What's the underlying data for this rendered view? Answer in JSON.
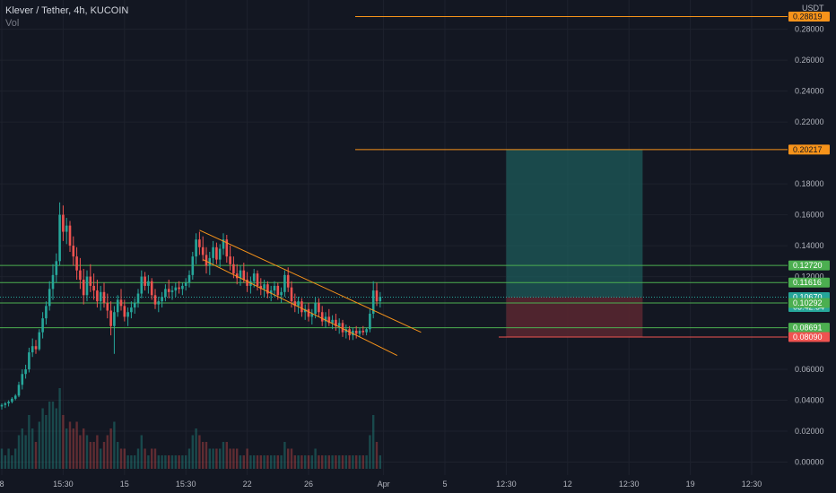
{
  "header": {
    "symbol": "Klever / Tether, 4h, KUCOIN",
    "volume_label": "Vol"
  },
  "currency": "USDT",
  "countdown": "03:42:54",
  "colors": {
    "background": "#131722",
    "up": "#26a69a",
    "down": "#ef5350",
    "orange": "#f7931a",
    "green_line": "#4caf50",
    "target_zone": "#1e5b5a",
    "stop_zone": "#5a2730",
    "current_price_tag": "#26a69a"
  },
  "chart_data": {
    "type": "candlestick",
    "y_axis": {
      "ticks": [
        "0.28000",
        "0.26000",
        "0.24000",
        "0.22000",
        "0.18000",
        "0.16000",
        "0.14000",
        "0.12000",
        "0.06000",
        "0.04000",
        "0.02000",
        "0.00000"
      ],
      "tick_values": [
        0.28,
        0.26,
        0.24,
        0.22,
        0.18,
        0.16,
        0.14,
        0.12,
        0.06,
        0.04,
        0.02,
        0.0
      ],
      "ylim": [
        -0.002,
        0.296
      ]
    },
    "x_axis": {
      "ticks": [
        "8",
        "15:30",
        "15",
        "15:30",
        "22",
        "26",
        "Apr",
        "5",
        "12:30",
        "12",
        "12:30",
        "19",
        "12:30"
      ],
      "tick_index": [
        0,
        18,
        36,
        54,
        72,
        90,
        112,
        130,
        148,
        166,
        184,
        202,
        220
      ],
      "count": 230
    },
    "price_levels": [
      {
        "label": "0.28819",
        "value": 0.28819,
        "kind": "orange"
      },
      {
        "label": "0.20217",
        "value": 0.20217,
        "kind": "orange"
      },
      {
        "label": "0.12720",
        "value": 0.1272,
        "kind": "green"
      },
      {
        "label": "0.11616",
        "value": 0.11616,
        "kind": "green"
      },
      {
        "label": "0.10670",
        "value": 0.1067,
        "kind": "current"
      },
      {
        "label": "0.10292",
        "value": 0.10292,
        "kind": "green"
      },
      {
        "label": "0.08691",
        "value": 0.08691,
        "kind": "green"
      },
      {
        "label": "0.08090",
        "value": 0.0809,
        "kind": "red"
      }
    ],
    "position": {
      "entry": 0.1067,
      "target": 0.20217,
      "stop": 0.0809,
      "start_index": 148,
      "end_index": 188
    },
    "channel": {
      "upper": [
        [
          58,
          0.15
        ],
        [
          123,
          0.084
        ]
      ],
      "lower": [
        [
          59,
          0.131
        ],
        [
          116,
          0.069
        ]
      ]
    },
    "candles": [
      [
        0.036,
        0.038,
        0.034,
        0.037,
        0.03
      ],
      [
        0.037,
        0.039,
        0.035,
        0.038,
        0.02
      ],
      [
        0.038,
        0.04,
        0.036,
        0.039,
        0.03
      ],
      [
        0.039,
        0.042,
        0.038,
        0.041,
        0.02
      ],
      [
        0.041,
        0.044,
        0.04,
        0.043,
        0.03
      ],
      [
        0.043,
        0.052,
        0.042,
        0.05,
        0.05
      ],
      [
        0.05,
        0.06,
        0.047,
        0.057,
        0.06
      ],
      [
        0.057,
        0.063,
        0.054,
        0.06,
        0.05
      ],
      [
        0.06,
        0.074,
        0.058,
        0.071,
        0.08
      ],
      [
        0.071,
        0.08,
        0.068,
        0.075,
        0.06
      ],
      [
        0.075,
        0.079,
        0.07,
        0.073,
        0.04
      ],
      [
        0.073,
        0.086,
        0.072,
        0.084,
        0.07
      ],
      [
        0.084,
        0.097,
        0.08,
        0.093,
        0.09
      ],
      [
        0.093,
        0.104,
        0.089,
        0.101,
        0.08
      ],
      [
        0.101,
        0.117,
        0.098,
        0.112,
        0.1
      ],
      [
        0.112,
        0.128,
        0.105,
        0.121,
        0.1
      ],
      [
        0.121,
        0.135,
        0.116,
        0.13,
        0.09
      ],
      [
        0.13,
        0.168,
        0.127,
        0.16,
        0.12
      ],
      [
        0.16,
        0.166,
        0.143,
        0.149,
        0.08
      ],
      [
        0.149,
        0.158,
        0.141,
        0.153,
        0.06
      ],
      [
        0.153,
        0.156,
        0.136,
        0.14,
        0.07
      ],
      [
        0.14,
        0.146,
        0.127,
        0.133,
        0.06
      ],
      [
        0.133,
        0.139,
        0.118,
        0.124,
        0.07
      ],
      [
        0.124,
        0.132,
        0.112,
        0.118,
        0.05
      ],
      [
        0.118,
        0.125,
        0.102,
        0.108,
        0.06
      ],
      [
        0.108,
        0.124,
        0.104,
        0.12,
        0.05
      ],
      [
        0.12,
        0.128,
        0.11,
        0.114,
        0.04
      ],
      [
        0.114,
        0.122,
        0.105,
        0.111,
        0.04
      ],
      [
        0.111,
        0.118,
        0.1,
        0.104,
        0.05
      ],
      [
        0.104,
        0.114,
        0.098,
        0.11,
        0.03
      ],
      [
        0.11,
        0.116,
        0.1,
        0.103,
        0.04
      ],
      [
        0.103,
        0.109,
        0.093,
        0.098,
        0.05
      ],
      [
        0.098,
        0.104,
        0.082,
        0.088,
        0.06
      ],
      [
        0.088,
        0.101,
        0.07,
        0.097,
        0.07
      ],
      [
        0.097,
        0.108,
        0.094,
        0.105,
        0.04
      ],
      [
        0.105,
        0.112,
        0.098,
        0.101,
        0.03
      ],
      [
        0.101,
        0.105,
        0.091,
        0.094,
        0.03
      ],
      [
        0.094,
        0.1,
        0.088,
        0.097,
        0.02
      ],
      [
        0.097,
        0.104,
        0.093,
        0.1,
        0.02
      ],
      [
        0.1,
        0.106,
        0.096,
        0.103,
        0.02
      ],
      [
        0.103,
        0.112,
        0.1,
        0.109,
        0.03
      ],
      [
        0.109,
        0.124,
        0.106,
        0.12,
        0.05
      ],
      [
        0.12,
        0.123,
        0.111,
        0.114,
        0.03
      ],
      [
        0.114,
        0.121,
        0.109,
        0.117,
        0.02
      ],
      [
        0.117,
        0.119,
        0.105,
        0.108,
        0.03
      ],
      [
        0.108,
        0.112,
        0.099,
        0.102,
        0.03
      ],
      [
        0.102,
        0.107,
        0.097,
        0.104,
        0.02
      ],
      [
        0.104,
        0.11,
        0.1,
        0.107,
        0.02
      ],
      [
        0.107,
        0.115,
        0.104,
        0.112,
        0.02
      ],
      [
        0.112,
        0.118,
        0.106,
        0.11,
        0.02
      ],
      [
        0.11,
        0.114,
        0.105,
        0.111,
        0.02
      ],
      [
        0.111,
        0.116,
        0.107,
        0.113,
        0.02
      ],
      [
        0.113,
        0.117,
        0.109,
        0.112,
        0.02
      ],
      [
        0.112,
        0.116,
        0.108,
        0.114,
        0.02
      ],
      [
        0.114,
        0.119,
        0.111,
        0.116,
        0.02
      ],
      [
        0.116,
        0.124,
        0.113,
        0.121,
        0.03
      ],
      [
        0.121,
        0.136,
        0.118,
        0.133,
        0.05
      ],
      [
        0.133,
        0.148,
        0.128,
        0.144,
        0.06
      ],
      [
        0.144,
        0.149,
        0.134,
        0.139,
        0.05
      ],
      [
        0.139,
        0.146,
        0.13,
        0.134,
        0.04
      ],
      [
        0.134,
        0.139,
        0.122,
        0.127,
        0.04
      ],
      [
        0.127,
        0.136,
        0.121,
        0.132,
        0.03
      ],
      [
        0.132,
        0.143,
        0.128,
        0.139,
        0.03
      ],
      [
        0.139,
        0.142,
        0.128,
        0.131,
        0.03
      ],
      [
        0.131,
        0.141,
        0.126,
        0.138,
        0.03
      ],
      [
        0.138,
        0.148,
        0.134,
        0.144,
        0.04
      ],
      [
        0.144,
        0.147,
        0.129,
        0.133,
        0.04
      ],
      [
        0.133,
        0.14,
        0.124,
        0.128,
        0.03
      ],
      [
        0.128,
        0.133,
        0.119,
        0.122,
        0.03
      ],
      [
        0.122,
        0.128,
        0.115,
        0.119,
        0.03
      ],
      [
        0.119,
        0.127,
        0.114,
        0.124,
        0.02
      ],
      [
        0.124,
        0.129,
        0.116,
        0.118,
        0.02
      ],
      [
        0.118,
        0.123,
        0.11,
        0.114,
        0.03
      ],
      [
        0.114,
        0.12,
        0.109,
        0.117,
        0.02
      ],
      [
        0.117,
        0.125,
        0.113,
        0.122,
        0.02
      ],
      [
        0.122,
        0.124,
        0.111,
        0.114,
        0.02
      ],
      [
        0.114,
        0.119,
        0.108,
        0.112,
        0.02
      ],
      [
        0.112,
        0.118,
        0.107,
        0.115,
        0.02
      ],
      [
        0.115,
        0.117,
        0.106,
        0.109,
        0.02
      ],
      [
        0.109,
        0.114,
        0.104,
        0.111,
        0.02
      ],
      [
        0.111,
        0.117,
        0.107,
        0.114,
        0.02
      ],
      [
        0.114,
        0.116,
        0.105,
        0.108,
        0.02
      ],
      [
        0.108,
        0.113,
        0.103,
        0.11,
        0.02
      ],
      [
        0.11,
        0.124,
        0.107,
        0.121,
        0.04
      ],
      [
        0.121,
        0.126,
        0.11,
        0.113,
        0.03
      ],
      [
        0.113,
        0.117,
        0.1,
        0.104,
        0.03
      ],
      [
        0.104,
        0.109,
        0.097,
        0.101,
        0.02
      ],
      [
        0.101,
        0.107,
        0.096,
        0.104,
        0.02
      ],
      [
        0.104,
        0.106,
        0.094,
        0.097,
        0.02
      ],
      [
        0.097,
        0.102,
        0.092,
        0.099,
        0.02
      ],
      [
        0.099,
        0.103,
        0.091,
        0.094,
        0.02
      ],
      [
        0.094,
        0.099,
        0.089,
        0.096,
        0.02
      ],
      [
        0.096,
        0.107,
        0.093,
        0.103,
        0.03
      ],
      [
        0.103,
        0.106,
        0.094,
        0.097,
        0.02
      ],
      [
        0.097,
        0.101,
        0.088,
        0.091,
        0.02
      ],
      [
        0.091,
        0.097,
        0.087,
        0.094,
        0.02
      ],
      [
        0.094,
        0.099,
        0.088,
        0.09,
        0.02
      ],
      [
        0.09,
        0.095,
        0.086,
        0.092,
        0.02
      ],
      [
        0.092,
        0.096,
        0.085,
        0.088,
        0.02
      ],
      [
        0.088,
        0.093,
        0.083,
        0.09,
        0.02
      ],
      [
        0.09,
        0.092,
        0.081,
        0.084,
        0.02
      ],
      [
        0.084,
        0.089,
        0.08,
        0.086,
        0.02
      ],
      [
        0.086,
        0.088,
        0.079,
        0.082,
        0.02
      ],
      [
        0.082,
        0.087,
        0.079,
        0.085,
        0.02
      ],
      [
        0.085,
        0.088,
        0.08,
        0.083,
        0.02
      ],
      [
        0.083,
        0.087,
        0.081,
        0.085,
        0.02
      ],
      [
        0.085,
        0.088,
        0.082,
        0.084,
        0.02
      ],
      [
        0.084,
        0.087,
        0.082,
        0.086,
        0.02
      ],
      [
        0.086,
        0.099,
        0.084,
        0.096,
        0.05
      ],
      [
        0.096,
        0.117,
        0.093,
        0.111,
        0.08
      ],
      [
        0.111,
        0.116,
        0.101,
        0.104,
        0.04
      ],
      [
        0.104,
        0.11,
        0.1,
        0.107,
        0.02
      ]
    ],
    "volume_max": 0.12
  }
}
